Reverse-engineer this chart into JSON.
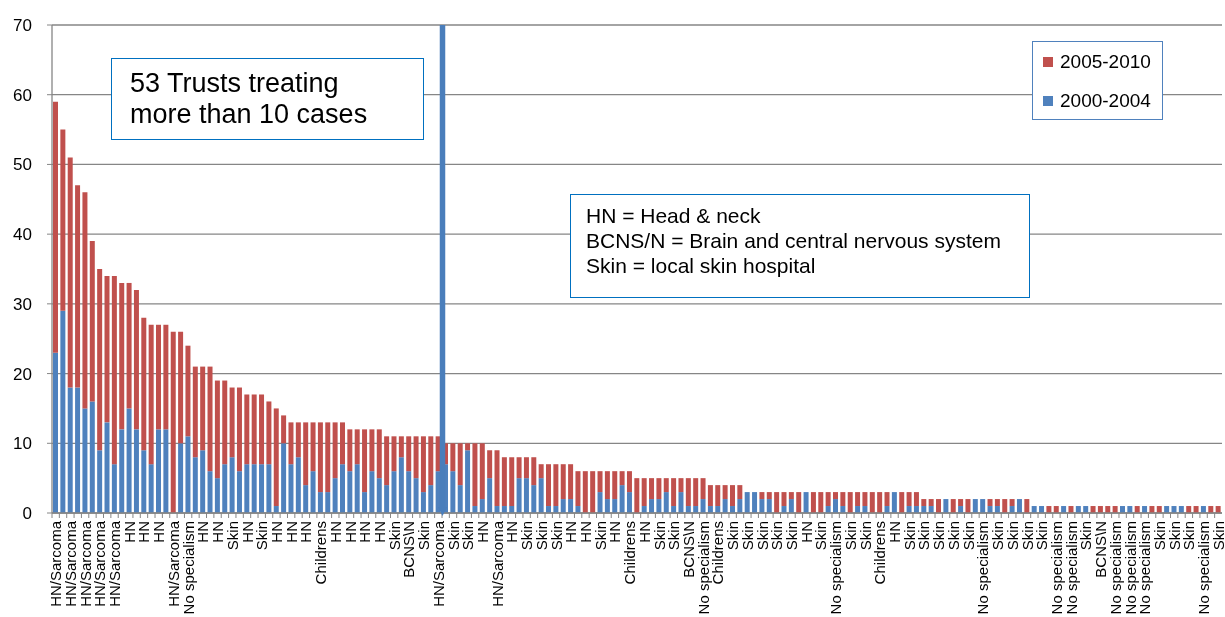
{
  "chart_data": {
    "type": "bar",
    "stacked": true,
    "categories": [
      "HN/Sarcoma",
      null,
      "HN/Sarcoma",
      null,
      "HN/Sarcoma",
      null,
      "HN/Sarcoma",
      null,
      "HN/Sarcoma",
      null,
      "HN",
      null,
      "HN",
      null,
      "HN",
      null,
      "HN/Sarcoma",
      null,
      "No specialism",
      null,
      "HN",
      null,
      "HN",
      null,
      "Skin",
      null,
      "HN",
      null,
      "Skin",
      null,
      "HN",
      null,
      "HN",
      null,
      "HN",
      null,
      "Childrens",
      null,
      "HN",
      null,
      "HN",
      null,
      "HN",
      null,
      "HN",
      null,
      "Skin",
      null,
      "BCNS\\N",
      null,
      "Skin",
      null,
      "HN/Sarcoma",
      null,
      "Skin",
      null,
      "Skin",
      null,
      "HN",
      null,
      "HN/Sarcoma",
      null,
      "HN",
      null,
      "Skin",
      null,
      "Skin",
      null,
      "Skin",
      null,
      "HN",
      null,
      "HN",
      null,
      "Skin",
      null,
      "HN",
      null,
      "Childrens",
      null,
      "HN",
      null,
      "Skin",
      null,
      "Skin",
      null,
      "BCNS\\N",
      null,
      "No specialism",
      null,
      "Childrens",
      null,
      "Skin",
      null,
      "Skin",
      null,
      "Skin",
      null,
      "Skin",
      null,
      "Skin",
      null,
      "HN",
      null,
      "Skin",
      null,
      "No specialism",
      null,
      "Skin",
      null,
      "Skin",
      null,
      "Childrens",
      null,
      "HN",
      null,
      "Skin",
      null,
      "Skin",
      null,
      "Skin",
      null,
      "Skin",
      null,
      "Skin",
      null,
      "No specialism",
      null,
      "Skin",
      null,
      "Skin",
      null,
      "Skin",
      null,
      "Skin",
      null,
      "No specialism",
      null,
      "No specialism",
      null,
      "Skin",
      null,
      "BCNS\\N",
      null,
      "No specialism",
      null,
      "No specialism",
      null,
      "No specialism",
      null,
      "Skin",
      null,
      "Skin",
      null,
      "Skin",
      null,
      "No specialism",
      null,
      "Skin"
    ],
    "series": [
      {
        "name": "2000-2004",
        "color": "#4f81bd",
        "values": [
          23,
          29,
          18,
          18,
          15,
          16,
          9,
          13,
          7,
          12,
          15,
          12,
          9,
          7,
          12,
          12,
          0,
          10,
          11,
          8,
          9,
          6,
          5,
          7,
          8,
          6,
          7,
          7,
          7,
          7,
          1,
          10,
          7,
          8,
          4,
          6,
          3,
          3,
          5,
          7,
          6,
          7,
          3,
          6,
          5,
          4,
          6,
          8,
          6,
          5,
          3,
          4,
          6,
          7,
          6,
          4,
          9,
          1,
          2,
          5,
          1,
          1,
          1,
          5,
          5,
          4,
          5,
          1,
          1,
          2,
          2,
          1,
          0,
          0,
          3,
          2,
          2,
          4,
          3,
          0,
          1,
          2,
          2,
          3,
          1,
          3,
          1,
          1,
          2,
          1,
          1,
          2,
          1,
          2,
          3,
          3,
          2,
          2,
          0,
          1,
          2,
          0,
          3,
          0,
          0,
          1,
          2,
          1,
          0,
          1,
          1,
          0,
          0,
          1,
          3,
          0,
          1,
          1,
          1,
          1,
          0,
          2,
          0,
          1,
          0,
          2,
          2,
          1,
          1,
          0,
          1,
          2,
          0,
          1,
          1,
          0,
          0,
          1,
          0,
          1,
          1,
          0,
          0,
          0,
          0,
          1,
          1,
          0,
          1,
          0,
          0,
          1,
          1,
          1,
          0,
          0,
          1,
          0,
          0
        ]
      },
      {
        "name": "2005-2010",
        "color": "#c0504d",
        "values": [
          36,
          26,
          33,
          29,
          31,
          23,
          26,
          21,
          27,
          21,
          18,
          20,
          19,
          20,
          15,
          15,
          26,
          16,
          13,
          13,
          12,
          15,
          14,
          12,
          10,
          12,
          10,
          10,
          10,
          9,
          14,
          4,
          6,
          5,
          9,
          7,
          10,
          10,
          8,
          6,
          6,
          5,
          9,
          6,
          7,
          7,
          5,
          3,
          5,
          6,
          8,
          7,
          5,
          3,
          4,
          6,
          1,
          9,
          8,
          4,
          8,
          7,
          7,
          3,
          3,
          4,
          2,
          6,
          6,
          5,
          5,
          5,
          6,
          6,
          3,
          4,
          4,
          2,
          3,
          5,
          4,
          3,
          3,
          2,
          4,
          2,
          4,
          4,
          3,
          3,
          3,
          2,
          3,
          2,
          0,
          0,
          1,
          1,
          3,
          2,
          1,
          3,
          0,
          3,
          3,
          2,
          1,
          2,
          3,
          2,
          2,
          3,
          3,
          2,
          0,
          3,
          2,
          2,
          1,
          1,
          2,
          0,
          2,
          1,
          2,
          0,
          0,
          1,
          1,
          2,
          1,
          0,
          2,
          0,
          0,
          1,
          1,
          0,
          1,
          0,
          0,
          1,
          1,
          1,
          1,
          0,
          0,
          1,
          0,
          1,
          1,
          0,
          0,
          0,
          1,
          1,
          0,
          1,
          1
        ]
      }
    ],
    "ylim": [
      0,
      70
    ],
    "yticks": [
      0,
      10,
      20,
      30,
      40,
      50,
      60,
      70
    ],
    "grid": "y",
    "legend": "top right",
    "annotations": [
      "53 Trusts treating more than 10 cases",
      "HN = Head & neck",
      "BCNS/N = Brain and central nervous system",
      "Skin = local skin hospital"
    ]
  }
}
